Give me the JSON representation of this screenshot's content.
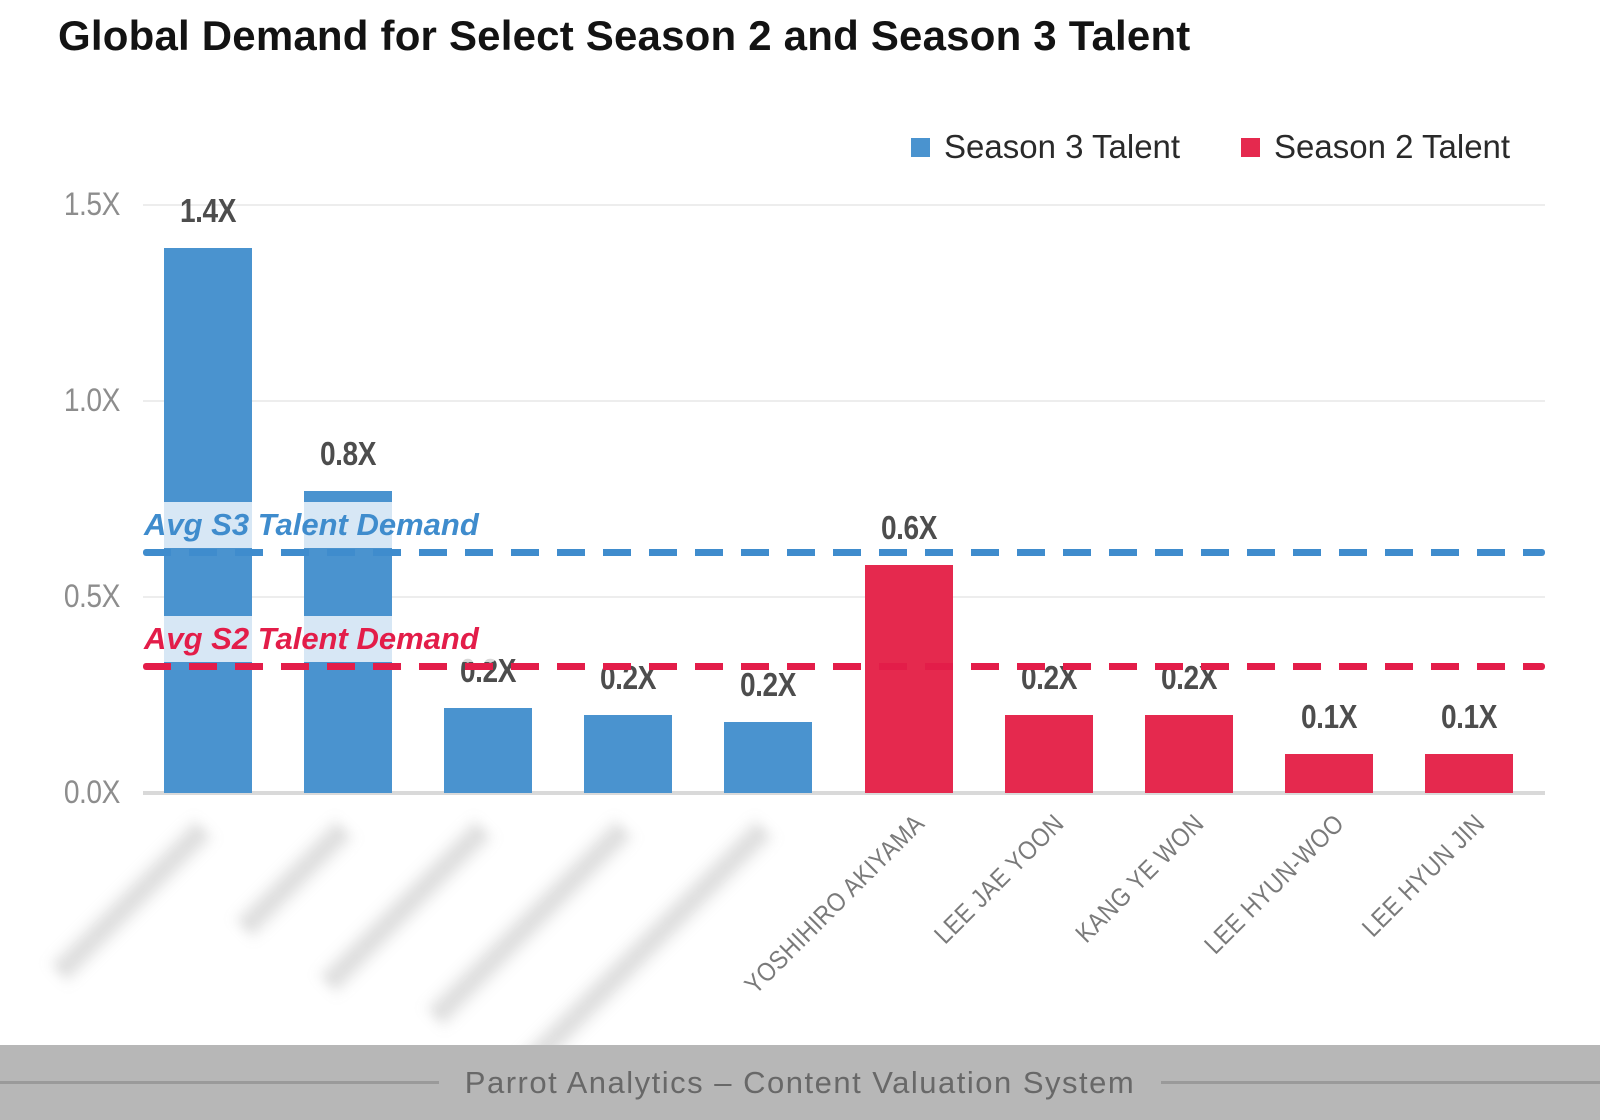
{
  "title": "Global Demand for Select Season 2 and Season 3 Talent",
  "legend": {
    "items": [
      {
        "label": "Season 3 Talent",
        "color": "#4A93CF"
      },
      {
        "label": "Season 2 Talent",
        "color": "#E5294E"
      }
    ]
  },
  "footer": {
    "text": "Parrot Analytics – Content Valuation System"
  },
  "chart_data": {
    "type": "bar",
    "title": "Global Demand for Select Season 2 and Season 3 Talent",
    "xlabel": "",
    "ylabel": "",
    "ylim": [
      0,
      1.5
    ],
    "y_ticks": [
      "0.0X",
      "0.5X",
      "1.0X",
      "1.5X"
    ],
    "y_tick_values": [
      0,
      0.5,
      1.0,
      1.5
    ],
    "grid": true,
    "legend_position": "top-right",
    "series_colors": {
      "Season 3 Talent": "#4A93CF",
      "Season 2 Talent": "#E5294E"
    },
    "categories": [
      "",
      "",
      "",
      "",
      "",
      "YOSHIHIRO AKIYAMA",
      "LEE JAE YOON",
      "KANG YE WON",
      "LEE HYUN-WOO",
      "LEE HYUN JIN"
    ],
    "bars": [
      {
        "category": "",
        "category_blurred": true,
        "series": "Season 3 Talent",
        "value": 1.4,
        "label": "1.4X",
        "value_est": 1.39
      },
      {
        "category": "",
        "category_blurred": true,
        "series": "Season 3 Talent",
        "value": 0.8,
        "label": "0.8X",
        "value_est": 0.77
      },
      {
        "category": "",
        "category_blurred": true,
        "series": "Season 3 Talent",
        "value": 0.2,
        "label": "0.2X",
        "value_est": 0.217
      },
      {
        "category": "",
        "category_blurred": true,
        "series": "Season 3 Talent",
        "value": 0.2,
        "label": "0.2X",
        "value_est": 0.2
      },
      {
        "category": "",
        "category_blurred": true,
        "series": "Season 3 Talent",
        "value": 0.2,
        "label": "0.2X",
        "value_est": 0.18
      },
      {
        "category": "YOSHIHIRO AKIYAMA",
        "category_blurred": false,
        "series": "Season 2 Talent",
        "value": 0.6,
        "label": "0.6X",
        "value_est": 0.582
      },
      {
        "category": "LEE JAE YOON",
        "category_blurred": false,
        "series": "Season 2 Talent",
        "value": 0.2,
        "label": "0.2X",
        "value_est": 0.2
      },
      {
        "category": "KANG YE WON",
        "category_blurred": false,
        "series": "Season 2 Talent",
        "value": 0.2,
        "label": "0.2X",
        "value_est": 0.2
      },
      {
        "category": "LEE HYUN-WOO",
        "category_blurred": false,
        "series": "Season 2 Talent",
        "value": 0.1,
        "label": "0.1X",
        "value_est": 0.1
      },
      {
        "category": "LEE HYUN JIN",
        "category_blurred": false,
        "series": "Season 2 Talent",
        "value": 0.1,
        "label": "0.1X",
        "value_est": 0.1
      }
    ],
    "reference_lines": [
      {
        "id": "s3",
        "label": "Avg S3 Talent Demand",
        "y_value_est": 0.615,
        "color": "#3F8CCD",
        "style": "dashed"
      },
      {
        "id": "s2",
        "label": "Avg S2 Talent Demand",
        "y_value_est": 0.324,
        "color": "#E31D49",
        "style": "dashed"
      }
    ]
  }
}
